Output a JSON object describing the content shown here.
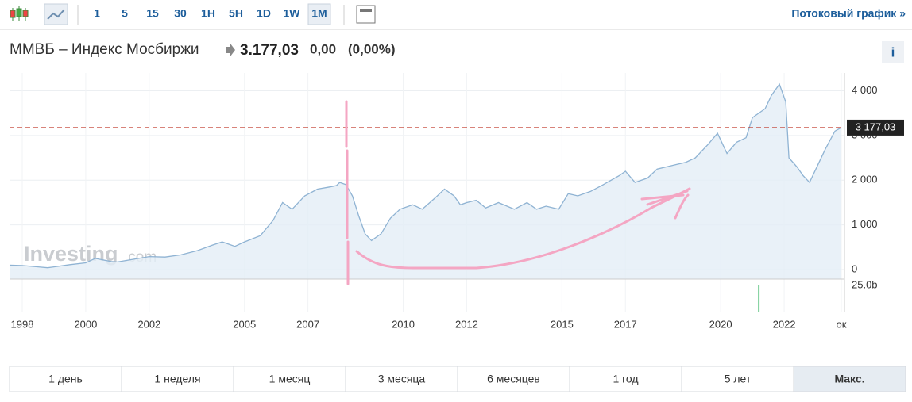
{
  "toolbar": {
    "intervals": [
      "1",
      "5",
      "15",
      "30",
      "1H",
      "5H",
      "1D",
      "1W",
      "1M"
    ],
    "selected_interval": "1M",
    "streaming_link": "Потоковый график »"
  },
  "header": {
    "name": "ММВБ – Индекс Мосбиржи",
    "price": "3.177,03",
    "change": "0,00",
    "change_percent": "(0,00%)",
    "info": "i"
  },
  "chart_data": {
    "type": "line",
    "watermark": "Investing",
    "watermark_suffix": ".com",
    "series": [
      {
        "color": "#8fb3d3",
        "x": [
          1997.6,
          1998.0,
          1998.5,
          1998.8,
          1999.0,
          1999.5,
          2000.0,
          2000.3,
          2000.8,
          2001.0,
          2001.5,
          2002.0,
          2002.5,
          2003.0,
          2003.5,
          2004.0,
          2004.3,
          2004.7,
          2005.0,
          2005.5,
          2005.9,
          2006.2,
          2006.5,
          2006.9,
          2007.3,
          2007.7,
          2007.9,
          2008.0,
          2008.2,
          2008.4,
          2008.6,
          2008.8,
          2009.0,
          2009.3,
          2009.6,
          2009.9,
          2010.3,
          2010.6,
          2011.0,
          2011.3,
          2011.6,
          2011.8,
          2012.0,
          2012.3,
          2012.6,
          2013.0,
          2013.5,
          2013.9,
          2014.2,
          2014.5,
          2014.9,
          2015.2,
          2015.5,
          2015.9,
          2016.3,
          2016.8,
          2017.0,
          2017.3,
          2017.7,
          2018.0,
          2018.3,
          2018.6,
          2018.9,
          2019.2,
          2019.6,
          2019.9,
          2020.2,
          2020.5,
          2020.8,
          2021.0,
          2021.4,
          2021.6,
          2021.85,
          2022.05,
          2022.15,
          2022.4,
          2022.6,
          2022.8,
          2023.0,
          2023.3,
          2023.6,
          2023.8
        ],
        "values": [
          100,
          90,
          60,
          40,
          60,
          110,
          150,
          250,
          180,
          170,
          230,
          290,
          280,
          330,
          420,
          550,
          620,
          520,
          620,
          760,
          1100,
          1500,
          1350,
          1650,
          1800,
          1850,
          1880,
          1950,
          1900,
          1650,
          1200,
          800,
          650,
          800,
          1150,
          1350,
          1450,
          1350,
          1600,
          1800,
          1650,
          1450,
          1500,
          1550,
          1380,
          1500,
          1350,
          1500,
          1350,
          1420,
          1350,
          1700,
          1650,
          1750,
          1900,
          2100,
          2200,
          1950,
          2050,
          2250,
          2300,
          2350,
          2400,
          2500,
          2800,
          3050,
          2600,
          2850,
          2950,
          3400,
          3600,
          3900,
          4150,
          3750,
          2500,
          2300,
          2100,
          1950,
          2250,
          2700,
          3100,
          3177
        ]
      }
    ],
    "xlim": [
      1997.6,
      2023.9
    ],
    "xticks": [
      1998,
      2000,
      2002,
      2005,
      2007,
      2010,
      2012,
      2015,
      2017,
      2020,
      2022,
      {
        "value": 2023.8,
        "label": "ок"
      }
    ],
    "ylim": [
      -213,
      4400
    ],
    "yticks": [
      0,
      {
        "value": 1000,
        "label": "1 000"
      },
      {
        "value": 2000,
        "label": "2 000"
      },
      {
        "value": 3000,
        "label": "3 000"
      },
      {
        "value": 4000,
        "label": "4 000"
      }
    ],
    "grid": true,
    "reference_line": {
      "value": 3177.03,
      "label": "3 177,03",
      "color": "#c0392b"
    },
    "volume": {
      "x": [
        2021.2
      ],
      "values": [
        25000000000
      ],
      "color": "#7ccf9a",
      "ylim": [
        0,
        28000000000
      ],
      "yticks": [
        {
          "value": 25000000000,
          "label": "25.0b"
        }
      ]
    }
  },
  "range_buttons": [
    "1 день",
    "1 неделя",
    "1 месяц",
    "3 месяца",
    "6 месяцев",
    "1 год",
    "5 лет",
    "Макс."
  ],
  "selected_range": "Макс."
}
